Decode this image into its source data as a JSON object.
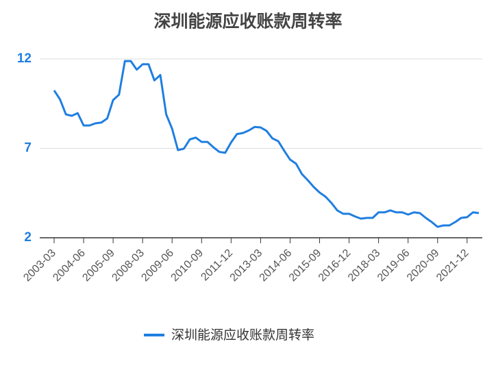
{
  "chart_data": {
    "type": "line",
    "title": "深圳能源应收账款周转率",
    "categories": [
      "2003-03",
      null,
      null,
      null,
      null,
      "2004-06",
      null,
      null,
      null,
      null,
      "2005-09",
      null,
      null,
      null,
      null,
      "2008-03",
      null,
      null,
      null,
      null,
      "2009-06",
      null,
      null,
      null,
      null,
      "2010-09",
      null,
      null,
      null,
      null,
      "2011-12",
      null,
      null,
      null,
      null,
      "2013-03",
      null,
      null,
      null,
      null,
      "2014-06",
      null,
      null,
      null,
      null,
      "2015-09",
      null,
      null,
      null,
      null,
      "2016-12",
      null,
      null,
      null,
      null,
      "2018-03",
      null,
      null,
      null,
      null,
      "2019-06",
      null,
      null,
      null,
      null,
      "2020-09",
      null,
      null,
      null,
      null,
      "2021-12",
      null,
      null
    ],
    "series": [
      {
        "name": "深圳能源应收账款周转率",
        "color": "#1f7ee0",
        "values": [
          10.24,
          9.74,
          8.9,
          8.82,
          8.97,
          8.28,
          8.28,
          8.4,
          8.44,
          8.67,
          9.7,
          10.0,
          11.88,
          11.88,
          11.4,
          11.7,
          11.7,
          10.8,
          11.1,
          8.9,
          8.1,
          6.9,
          6.98,
          7.5,
          7.6,
          7.36,
          7.36,
          7.06,
          6.8,
          6.75,
          7.33,
          7.8,
          7.86,
          8.0,
          8.2,
          8.17,
          7.98,
          7.56,
          7.4,
          6.87,
          6.37,
          6.14,
          5.56,
          5.22,
          4.84,
          4.53,
          4.3,
          3.95,
          3.53,
          3.34,
          3.34,
          3.19,
          3.07,
          3.11,
          3.11,
          3.42,
          3.42,
          3.53,
          3.42,
          3.42,
          3.3,
          3.42,
          3.38,
          3.11,
          2.88,
          2.61,
          2.69,
          2.69,
          2.88,
          3.11,
          3.15,
          3.42,
          3.38
        ]
      }
    ],
    "ylim": [
      2,
      12
    ],
    "yticks": [
      2,
      7,
      12
    ],
    "grid": true
  }
}
